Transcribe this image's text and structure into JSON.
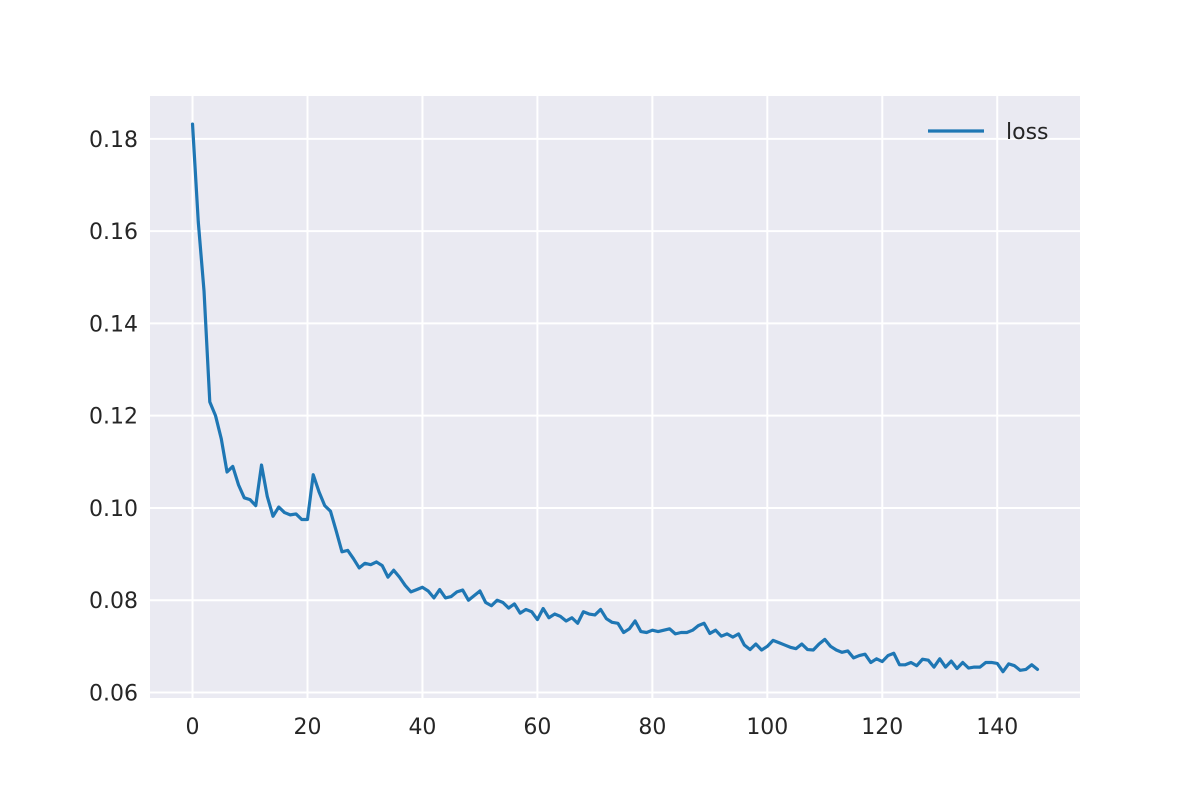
{
  "chart_data": {
    "type": "line",
    "style": "seaborn-darkgrid",
    "colors": {
      "plot_bg": "#eaeaf2",
      "grid": "#ffffff",
      "line": "#1f77b4",
      "text": "#262626"
    },
    "xlim": [
      -7.4,
      154.4
    ],
    "ylim": [
      0.0588,
      0.1893
    ],
    "x_ticks": [
      0,
      20,
      40,
      60,
      80,
      100,
      120,
      140
    ],
    "y_ticks": [
      0.06,
      0.08,
      0.1,
      0.12,
      0.14,
      0.16,
      0.18
    ],
    "grid": true,
    "legend_position": "top-right",
    "series": [
      {
        "name": "loss",
        "color": "#1f77b4",
        "x": [
          0,
          1,
          2,
          3,
          4,
          5,
          6,
          7,
          8,
          9,
          10,
          11,
          12,
          13,
          14,
          15,
          16,
          17,
          18,
          19,
          20,
          21,
          22,
          23,
          24,
          25,
          26,
          27,
          28,
          29,
          30,
          31,
          32,
          33,
          34,
          35,
          36,
          37,
          38,
          39,
          40,
          41,
          42,
          43,
          44,
          45,
          46,
          47,
          48,
          49,
          50,
          51,
          52,
          53,
          54,
          55,
          56,
          57,
          58,
          59,
          60,
          61,
          62,
          63,
          64,
          65,
          66,
          67,
          68,
          69,
          70,
          71,
          72,
          73,
          74,
          75,
          76,
          77,
          78,
          79,
          80,
          81,
          82,
          83,
          84,
          85,
          86,
          87,
          88,
          89,
          90,
          91,
          92,
          93,
          94,
          95,
          96,
          97,
          98,
          99,
          100,
          101,
          102,
          103,
          104,
          105,
          106,
          107,
          108,
          109,
          110,
          111,
          112,
          113,
          114,
          115,
          116,
          117,
          118,
          119,
          120,
          121,
          122,
          123,
          124,
          125,
          126,
          127,
          128,
          129,
          130,
          131,
          132,
          133,
          134,
          135,
          136,
          137,
          138,
          139,
          140,
          141,
          142,
          143,
          144,
          145,
          146,
          147
        ],
        "values": [
          0.1832,
          0.162,
          0.147,
          0.123,
          0.12,
          0.115,
          0.1078,
          0.109,
          0.105,
          0.1022,
          0.1018,
          0.1005,
          0.1093,
          0.1025,
          0.0982,
          0.1002,
          0.099,
          0.0985,
          0.0987,
          0.0975,
          0.0975,
          0.1072,
          0.1035,
          0.1005,
          0.0993,
          0.095,
          0.0905,
          0.0908,
          0.089,
          0.087,
          0.088,
          0.0877,
          0.0883,
          0.0875,
          0.085,
          0.0865,
          0.085,
          0.0832,
          0.0818,
          0.0823,
          0.0828,
          0.082,
          0.0805,
          0.0823,
          0.0805,
          0.0808,
          0.0818,
          0.0822,
          0.08,
          0.081,
          0.082,
          0.0795,
          0.0788,
          0.08,
          0.0795,
          0.0783,
          0.0792,
          0.0772,
          0.078,
          0.0775,
          0.0758,
          0.0782,
          0.0762,
          0.077,
          0.0765,
          0.0755,
          0.0762,
          0.075,
          0.0775,
          0.077,
          0.0768,
          0.078,
          0.076,
          0.0752,
          0.075,
          0.073,
          0.0738,
          0.0755,
          0.0732,
          0.073,
          0.0735,
          0.0732,
          0.0735,
          0.0738,
          0.0727,
          0.073,
          0.073,
          0.0735,
          0.0745,
          0.075,
          0.0728,
          0.0735,
          0.0722,
          0.0727,
          0.072,
          0.0727,
          0.0703,
          0.0693,
          0.0705,
          0.0692,
          0.07,
          0.0713,
          0.0708,
          0.0703,
          0.0698,
          0.0695,
          0.0705,
          0.0693,
          0.0692,
          0.0705,
          0.0715,
          0.07,
          0.0692,
          0.0687,
          0.069,
          0.0675,
          0.068,
          0.0683,
          0.0665,
          0.0673,
          0.0667,
          0.068,
          0.0685,
          0.066,
          0.066,
          0.0665,
          0.0658,
          0.0672,
          0.067,
          0.0655,
          0.0673,
          0.0655,
          0.0668,
          0.0652,
          0.0665,
          0.0653,
          0.0655,
          0.0655,
          0.0665,
          0.0665,
          0.0663,
          0.0645,
          0.0662,
          0.0658,
          0.0648,
          0.065,
          0.066,
          0.065
        ]
      }
    ]
  }
}
